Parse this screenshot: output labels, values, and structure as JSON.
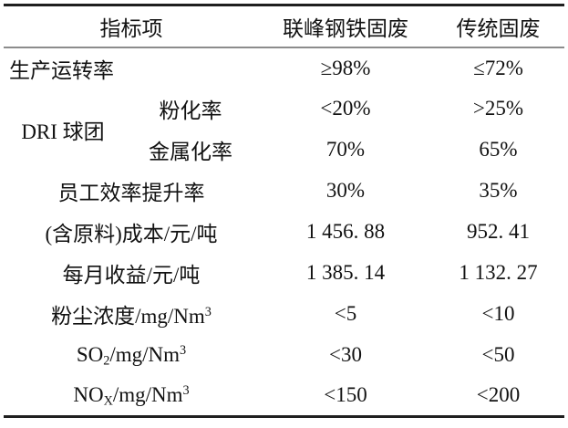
{
  "colors": {
    "background": "#ffffff",
    "text": "#121212",
    "rule_heavy": "#1f1f1f",
    "rule_light": "#8c8c8c"
  },
  "table": {
    "columns": [
      "指标项",
      "联峰钢铁固废",
      "传统固废"
    ],
    "rows": [
      {
        "kind": "full",
        "align": "left",
        "label": [
          "生产运转率"
        ],
        "values": [
          "≥98%",
          "≤72%"
        ]
      },
      {
        "kind": "group-start",
        "group": [
          "DRI 球团"
        ],
        "label": [
          "粉化率"
        ],
        "values": [
          "<20%",
          ">25%"
        ]
      },
      {
        "kind": "group-cont",
        "label": [
          "金属化率"
        ],
        "values": [
          "70%",
          "65%"
        ]
      },
      {
        "kind": "full",
        "label": [
          "员工效率提升率"
        ],
        "values": [
          "30%",
          "35%"
        ]
      },
      {
        "kind": "full",
        "label": [
          "(含原料)成本/元/吨"
        ],
        "values": [
          "1 456. 88",
          "952. 41"
        ]
      },
      {
        "kind": "full",
        "label": [
          "每月收益/元/吨"
        ],
        "values": [
          "1 385. 14",
          "1 132. 27"
        ]
      },
      {
        "kind": "full",
        "label": [
          "粉尘浓度/mg/Nm",
          {
            "sup": "3"
          }
        ],
        "values": [
          "<5",
          "<10"
        ]
      },
      {
        "kind": "full",
        "label": [
          "SO",
          {
            "sub": "2"
          },
          "/mg/Nm",
          {
            "sup": "3"
          }
        ],
        "values": [
          "<30",
          "<50"
        ]
      },
      {
        "kind": "full",
        "label": [
          "NO",
          {
            "sub": "X"
          },
          "/mg/Nm",
          {
            "sup": "3"
          }
        ],
        "values": [
          "<150",
          "<200"
        ]
      }
    ]
  }
}
